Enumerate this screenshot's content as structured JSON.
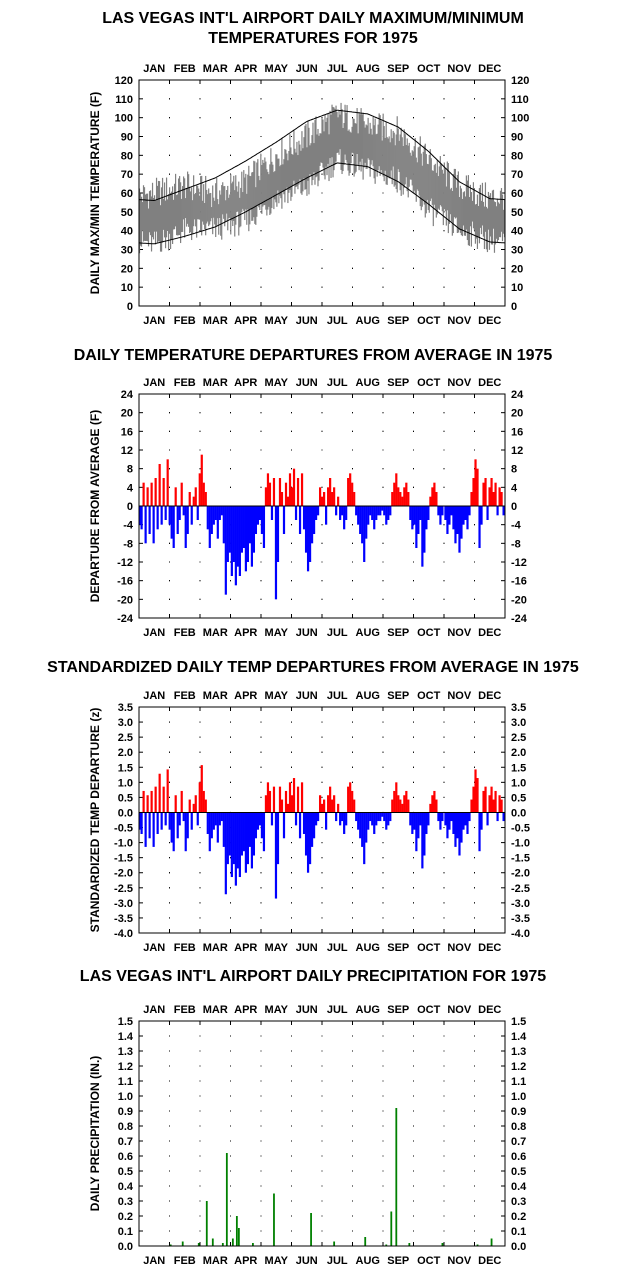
{
  "months": [
    "JAN",
    "FEB",
    "MAR",
    "APR",
    "MAY",
    "JUN",
    "JUL",
    "AUG",
    "SEP",
    "OCT",
    "NOV",
    "DEC"
  ],
  "titles": {
    "t1_line1": "LAS VEGAS INT'L AIRPORT DAILY MAXIMUM/MINIMUM",
    "t1_line2": "TEMPERATURES FOR 1975",
    "t2": "DAILY TEMPERATURE DEPARTURES FROM AVERAGE IN 1975",
    "t3": "STANDARDIZED DAILY TEMP DEPARTURES FROM AVERAGE IN 1975",
    "t4": "LAS VEGAS INT'L AIRPORT DAILY PRECIPITATION FOR 1975"
  },
  "colors": {
    "range": "#808080",
    "normal": "#000000",
    "warm": "#ff0000",
    "cold": "#0000ff",
    "precip": "#008000"
  },
  "chart_data": [
    {
      "type": "area",
      "title": "LAS VEGAS INT'L AIRPORT DAILY MAXIMUM/MINIMUM TEMPERATURES FOR 1975",
      "ylabel": "DAILY MAX/MIN TEMPERATURE (F)",
      "xlabel": "",
      "ylim": [
        0,
        120
      ],
      "yticks": [
        "0",
        "10",
        "20",
        "30",
        "40",
        "50",
        "60",
        "70",
        "80",
        "90",
        "100",
        "110",
        "120"
      ],
      "x_categories": [
        "JAN",
        "FEB",
        "MAR",
        "APR",
        "MAY",
        "JUN",
        "JUL",
        "AUG",
        "SEP",
        "OCT",
        "NOV",
        "DEC"
      ],
      "grid": true,
      "series": [
        {
          "name": "",
          "role": "daily max (monthly approx.)",
          "values": [
            60,
            64,
            60,
            66,
            80,
            90,
            102,
            96,
            93,
            78,
            64,
            57
          ]
        },
        {
          "name": "",
          "role": "daily min (monthly approx.)",
          "values": [
            33,
            40,
            41,
            45,
            57,
            63,
            77,
            72,
            67,
            51,
            40,
            35
          ]
        },
        {
          "name": "",
          "role": "normal max (monthly)",
          "values": [
            56,
            62,
            68,
            77,
            87,
            98,
            104,
            102,
            95,
            82,
            66,
            57
          ]
        },
        {
          "name": "",
          "role": "normal min (monthly)",
          "values": [
            33,
            37,
            42,
            50,
            59,
            68,
            76,
            74,
            66,
            54,
            41,
            34
          ]
        }
      ]
    },
    {
      "type": "bar",
      "title": "DAILY TEMPERATURE DEPARTURES FROM AVERAGE IN 1975",
      "ylabel": "DEPARTURE FROM AVERAGE (F)",
      "xlabel": "",
      "ylim": [
        -24,
        24
      ],
      "yticks": [
        "-24",
        "-20",
        "-16",
        "-12",
        "-8",
        "-4",
        "0",
        "4",
        "8",
        "12",
        "16",
        "20",
        "24"
      ],
      "grid": true,
      "x_unit": "day of year",
      "events": [
        {
          "x": 1,
          "v": -4
        },
        {
          "x": 3,
          "v": -5
        },
        {
          "x": 5,
          "v": 5
        },
        {
          "x": 7,
          "v": -8
        },
        {
          "x": 9,
          "v": 4
        },
        {
          "x": 11,
          "v": -6
        },
        {
          "x": 13,
          "v": 5
        },
        {
          "x": 15,
          "v": -8
        },
        {
          "x": 17,
          "v": 6
        },
        {
          "x": 19,
          "v": -5
        },
        {
          "x": 21,
          "v": 9
        },
        {
          "x": 23,
          "v": -4
        },
        {
          "x": 25,
          "v": 6
        },
        {
          "x": 27,
          "v": -3
        },
        {
          "x": 29,
          "v": 10
        },
        {
          "x": 31,
          "v": -4
        },
        {
          "x": 33,
          "v": -7
        },
        {
          "x": 35,
          "v": -9
        },
        {
          "x": 37,
          "v": 4
        },
        {
          "x": 39,
          "v": -6
        },
        {
          "x": 41,
          "v": -3
        },
        {
          "x": 43,
          "v": 5
        },
        {
          "x": 45,
          "v": -2
        },
        {
          "x": 47,
          "v": -9
        },
        {
          "x": 49,
          "v": -6
        },
        {
          "x": 51,
          "v": 3
        },
        {
          "x": 53,
          "v": -4
        },
        {
          "x": 55,
          "v": 2
        },
        {
          "x": 57,
          "v": 4
        },
        {
          "x": 59,
          "v": -3
        },
        {
          "x": 61,
          "v": 7
        },
        {
          "x": 63,
          "v": 11
        },
        {
          "x": 65,
          "v": 5
        },
        {
          "x": 67,
          "v": 3
        },
        {
          "x": 69,
          "v": -5
        },
        {
          "x": 71,
          "v": -9
        },
        {
          "x": 73,
          "v": -6
        },
        {
          "x": 75,
          "v": -4
        },
        {
          "x": 77,
          "v": -3
        },
        {
          "x": 79,
          "v": -7
        },
        {
          "x": 81,
          "v": -3
        },
        {
          "x": 83,
          "v": -2
        },
        {
          "x": 85,
          "v": -8
        },
        {
          "x": 87,
          "v": -19
        },
        {
          "x": 89,
          "v": -12
        },
        {
          "x": 91,
          "v": -10
        },
        {
          "x": 93,
          "v": -15
        },
        {
          "x": 95,
          "v": -12
        },
        {
          "x": 97,
          "v": -17
        },
        {
          "x": 99,
          "v": -13
        },
        {
          "x": 101,
          "v": -15
        },
        {
          "x": 103,
          "v": -10
        },
        {
          "x": 105,
          "v": -9
        },
        {
          "x": 107,
          "v": -14
        },
        {
          "x": 109,
          "v": -12
        },
        {
          "x": 111,
          "v": -8
        },
        {
          "x": 113,
          "v": -13
        },
        {
          "x": 115,
          "v": -10
        },
        {
          "x": 117,
          "v": -6
        },
        {
          "x": 119,
          "v": -4
        },
        {
          "x": 121,
          "v": -3
        },
        {
          "x": 123,
          "v": -6
        },
        {
          "x": 125,
          "v": -9
        },
        {
          "x": 127,
          "v": 4
        },
        {
          "x": 129,
          "v": 7
        },
        {
          "x": 131,
          "v": 5
        },
        {
          "x": 133,
          "v": -3
        },
        {
          "x": 135,
          "v": 6
        },
        {
          "x": 137,
          "v": -20
        },
        {
          "x": 139,
          "v": -12
        },
        {
          "x": 141,
          "v": 6
        },
        {
          "x": 143,
          "v": 3
        },
        {
          "x": 145,
          "v": -6
        },
        {
          "x": 147,
          "v": 5
        },
        {
          "x": 149,
          "v": 2
        },
        {
          "x": 151,
          "v": 7
        },
        {
          "x": 153,
          "v": 4
        },
        {
          "x": 155,
          "v": 8
        },
        {
          "x": 157,
          "v": -3
        },
        {
          "x": 159,
          "v": 6
        },
        {
          "x": 161,
          "v": -6
        },
        {
          "x": 163,
          "v": 7
        },
        {
          "x": 165,
          "v": -5
        },
        {
          "x": 167,
          "v": -10
        },
        {
          "x": 169,
          "v": -14
        },
        {
          "x": 171,
          "v": -12
        },
        {
          "x": 173,
          "v": -8
        },
        {
          "x": 175,
          "v": -6
        },
        {
          "x": 177,
          "v": -3
        },
        {
          "x": 179,
          "v": -2
        },
        {
          "x": 181,
          "v": 4
        },
        {
          "x": 183,
          "v": 2
        },
        {
          "x": 185,
          "v": 3
        },
        {
          "x": 187,
          "v": -4
        },
        {
          "x": 189,
          "v": 4
        },
        {
          "x": 191,
          "v": 6
        },
        {
          "x": 193,
          "v": 3
        },
        {
          "x": 195,
          "v": 4
        },
        {
          "x": 197,
          "v": -2
        },
        {
          "x": 199,
          "v": 2
        },
        {
          "x": 201,
          "v": -3
        },
        {
          "x": 203,
          "v": -2
        },
        {
          "x": 205,
          "v": -5
        },
        {
          "x": 207,
          "v": -3
        },
        {
          "x": 209,
          "v": 6
        },
        {
          "x": 211,
          "v": 7
        },
        {
          "x": 213,
          "v": 5
        },
        {
          "x": 215,
          "v": 3
        },
        {
          "x": 217,
          "v": -2
        },
        {
          "x": 219,
          "v": -4
        },
        {
          "x": 221,
          "v": -6
        },
        {
          "x": 223,
          "v": -8
        },
        {
          "x": 225,
          "v": -12
        },
        {
          "x": 227,
          "v": -7
        },
        {
          "x": 229,
          "v": -4
        },
        {
          "x": 231,
          "v": -2
        },
        {
          "x": 233,
          "v": -3
        },
        {
          "x": 235,
          "v": -5
        },
        {
          "x": 237,
          "v": -3
        },
        {
          "x": 239,
          "v": -2
        },
        {
          "x": 241,
          "v": -2
        },
        {
          "x": 243,
          "v": -1
        },
        {
          "x": 245,
          "v": -2
        },
        {
          "x": 247,
          "v": -4
        },
        {
          "x": 249,
          "v": -3
        },
        {
          "x": 251,
          "v": -2
        },
        {
          "x": 253,
          "v": 3
        },
        {
          "x": 255,
          "v": 5
        },
        {
          "x": 257,
          "v": 7
        },
        {
          "x": 259,
          "v": 4
        },
        {
          "x": 261,
          "v": 3
        },
        {
          "x": 263,
          "v": 2
        },
        {
          "x": 265,
          "v": 4
        },
        {
          "x": 267,
          "v": 5
        },
        {
          "x": 269,
          "v": 3
        },
        {
          "x": 271,
          "v": -3
        },
        {
          "x": 273,
          "v": -5
        },
        {
          "x": 275,
          "v": -4
        },
        {
          "x": 277,
          "v": -9
        },
        {
          "x": 279,
          "v": -6
        },
        {
          "x": 281,
          "v": -3
        },
        {
          "x": 283,
          "v": -13
        },
        {
          "x": 285,
          "v": -10
        },
        {
          "x": 287,
          "v": -5
        },
        {
          "x": 289,
          "v": -3
        },
        {
          "x": 291,
          "v": 2
        },
        {
          "x": 293,
          "v": 4
        },
        {
          "x": 295,
          "v": 5
        },
        {
          "x": 297,
          "v": 3
        },
        {
          "x": 299,
          "v": -2
        },
        {
          "x": 301,
          "v": -4
        },
        {
          "x": 303,
          "v": -2
        },
        {
          "x": 306,
          "v": -3
        },
        {
          "x": 308,
          "v": -6
        },
        {
          "x": 310,
          "v": -4
        },
        {
          "x": 312,
          "v": -2
        },
        {
          "x": 314,
          "v": -5
        },
        {
          "x": 316,
          "v": -8
        },
        {
          "x": 318,
          "v": -6
        },
        {
          "x": 320,
          "v": -10
        },
        {
          "x": 322,
          "v": -7
        },
        {
          "x": 324,
          "v": -4
        },
        {
          "x": 326,
          "v": -3
        },
        {
          "x": 328,
          "v": -5
        },
        {
          "x": 330,
          "v": -2
        },
        {
          "x": 332,
          "v": 3
        },
        {
          "x": 334,
          "v": 6
        },
        {
          "x": 336,
          "v": 10
        },
        {
          "x": 338,
          "v": 8
        },
        {
          "x": 340,
          "v": -9
        },
        {
          "x": 342,
          "v": -4
        },
        {
          "x": 344,
          "v": 5
        },
        {
          "x": 346,
          "v": 6
        },
        {
          "x": 348,
          "v": -3
        },
        {
          "x": 350,
          "v": 4
        },
        {
          "x": 352,
          "v": 6
        },
        {
          "x": 354,
          "v": 3
        },
        {
          "x": 356,
          "v": 5
        },
        {
          "x": 358,
          "v": -2
        },
        {
          "x": 360,
          "v": 4
        },
        {
          "x": 362,
          "v": 3
        },
        {
          "x": 364,
          "v": -2
        }
      ]
    },
    {
      "type": "bar",
      "title": "STANDARDIZED DAILY TEMP DEPARTURES FROM AVERAGE IN 1975",
      "ylabel": "STANDARDIZED TEMP DEPARTURE (z)",
      "xlabel": "",
      "ylim": [
        -4.0,
        3.5
      ],
      "yticks": [
        "-4.0",
        "-3.5",
        "-3.0",
        "-2.5",
        "-2.0",
        "-1.5",
        "-1.0",
        "-0.5",
        "0.0",
        "0.5",
        "1.0",
        "1.5",
        "2.0",
        "2.5",
        "3.0",
        "3.5"
      ],
      "grid": true,
      "x_unit": "day of year",
      "note_scale": "approximately temperature departure divided by 7",
      "events_ref": "same dates as chart 2"
    },
    {
      "type": "bar",
      "title": "LAS VEGAS INT'L AIRPORT DAILY PRECIPITATION FOR 1975",
      "ylabel": "DAILY PRECIPITATION (IN.)",
      "xlabel": "",
      "ylim": [
        0,
        1.5
      ],
      "yticks": [
        "0.0",
        "0.1",
        "0.2",
        "0.3",
        "0.4",
        "0.5",
        "0.6",
        "0.7",
        "0.8",
        "0.9",
        "1.0",
        "1.1",
        "1.2",
        "1.3",
        "1.4",
        "1.5"
      ],
      "grid": true,
      "x_unit": "day of year",
      "events": [
        {
          "x": 32,
          "v": 0.01
        },
        {
          "x": 44,
          "v": 0.03
        },
        {
          "x": 60,
          "v": 0.02
        },
        {
          "x": 68,
          "v": 0.3
        },
        {
          "x": 74,
          "v": 0.05
        },
        {
          "x": 84,
          "v": 0.02
        },
        {
          "x": 88,
          "v": 0.62
        },
        {
          "x": 94,
          "v": 0.05
        },
        {
          "x": 98,
          "v": 0.2
        },
        {
          "x": 100,
          "v": 0.12
        },
        {
          "x": 114,
          "v": 0.02
        },
        {
          "x": 135,
          "v": 0.35
        },
        {
          "x": 172,
          "v": 0.22
        },
        {
          "x": 195,
          "v": 0.03
        },
        {
          "x": 226,
          "v": 0.06
        },
        {
          "x": 247,
          "v": 0.01
        },
        {
          "x": 252,
          "v": 0.23
        },
        {
          "x": 257,
          "v": 0.92
        },
        {
          "x": 270,
          "v": 0.02
        },
        {
          "x": 303,
          "v": 0.02
        },
        {
          "x": 338,
          "v": 0.01
        },
        {
          "x": 352,
          "v": 0.05
        }
      ]
    }
  ]
}
